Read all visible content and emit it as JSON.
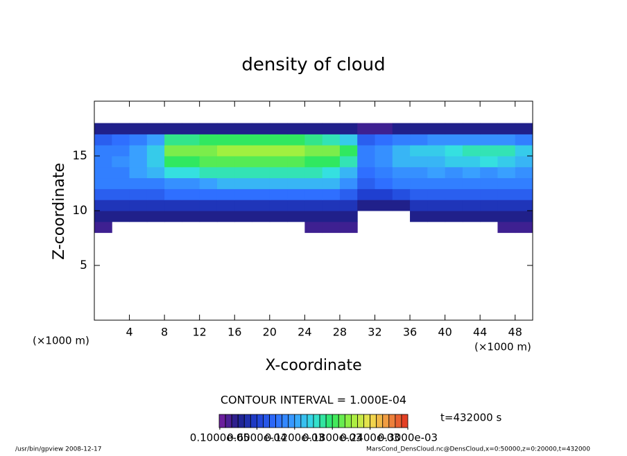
{
  "chart_data": {
    "type": "heatmap",
    "title": "density of cloud",
    "xlabel": "X-coordinate",
    "ylabel": "Z-coordinate",
    "xunit": "(×1000 m)",
    "yunit": "(×1000 m)",
    "contour_interval": "CONTOUR INTERVAL = 1.000E-04",
    "time_label": "t=432000 s",
    "footer_left": "/usr/bin/gpview   2008-12-17",
    "footer_right": "MarsCond_DensCloud.nc@DensCloud,x=0:50000,z=0:20000,t=432000",
    "xlim": [
      0,
      50
    ],
    "ylim": [
      0,
      20
    ],
    "xticks": [
      4,
      8,
      12,
      16,
      20,
      24,
      28,
      32,
      36,
      40,
      44,
      48
    ],
    "yticks": [
      5,
      10,
      15
    ],
    "x": [
      1,
      3,
      5,
      7,
      9,
      11,
      13,
      15,
      17,
      19,
      21,
      23,
      25,
      27,
      29,
      31,
      33,
      35,
      37,
      39,
      41,
      43,
      45,
      47,
      49
    ],
    "z": [
      8.5,
      9.5,
      10.5,
      11.5,
      12.5,
      13.5,
      14.5,
      15.5,
      16.5,
      17.5
    ],
    "values": [
      [
        2e-05,
        null,
        null,
        null,
        null,
        null,
        null,
        null,
        null,
        null,
        null,
        null,
        2e-05,
        2e-05,
        2e-05,
        null,
        null,
        null,
        null,
        null,
        null,
        null,
        null,
        2e-05,
        2e-05
      ],
      [
        3e-05,
        3e-05,
        3e-05,
        3e-05,
        3e-05,
        3e-05,
        3e-05,
        3e-05,
        3e-05,
        3e-05,
        3e-05,
        3e-05,
        3e-05,
        3e-05,
        3e-05,
        null,
        null,
        null,
        3e-05,
        3e-05,
        3e-05,
        3e-05,
        3e-05,
        3e-05,
        3e-05
      ],
      [
        5e-05,
        5e-05,
        5e-05,
        5e-05,
        5e-05,
        5e-05,
        5e-05,
        5e-05,
        5e-05,
        5e-05,
        5e-05,
        5e-05,
        5e-05,
        5e-05,
        5e-05,
        3e-05,
        3e-05,
        3e-05,
        5e-05,
        5e-05,
        5e-05,
        5e-05,
        5e-05,
        5e-05,
        5e-05
      ],
      [
        8e-05,
        8e-05,
        8e-05,
        8e-05,
        9e-05,
        9e-05,
        9e-05,
        9e-05,
        9e-05,
        9e-05,
        9e-05,
        9e-05,
        9e-05,
        9e-05,
        8e-05,
        6e-05,
        6e-05,
        7e-05,
        8e-05,
        8e-05,
        8e-05,
        8e-05,
        8e-05,
        8e-05,
        8e-05
      ],
      [
        0.0001,
        0.0001,
        0.0001,
        0.0001,
        0.00011,
        0.00011,
        0.00012,
        0.00013,
        0.00013,
        0.00013,
        0.00013,
        0.00013,
        0.00013,
        0.00013,
        0.00011,
        8e-05,
        9e-05,
        0.0001,
        0.0001,
        0.0001,
        0.0001,
        0.0001,
        0.0001,
        0.0001,
        0.0001
      ],
      [
        0.0001,
        0.0001,
        0.00012,
        0.00013,
        0.00015,
        0.00015,
        0.00016,
        0.00016,
        0.00016,
        0.00016,
        0.00016,
        0.00016,
        0.00016,
        0.00015,
        0.00013,
        9e-05,
        0.0001,
        0.00011,
        0.00011,
        0.00012,
        0.00011,
        0.00012,
        0.00011,
        0.00012,
        0.00011
      ],
      [
        0.0001,
        0.00011,
        0.00012,
        0.00014,
        0.00018,
        0.00018,
        0.00019,
        0.00019,
        0.00019,
        0.00019,
        0.00019,
        0.00019,
        0.00018,
        0.00018,
        0.00016,
        0.0001,
        0.00011,
        0.00013,
        0.00013,
        0.00013,
        0.00014,
        0.00014,
        0.00015,
        0.00014,
        0.00013
      ],
      [
        0.0001,
        0.0001,
        0.00012,
        0.00014,
        0.0002,
        0.0002,
        0.0002,
        0.00021,
        0.00021,
        0.00021,
        0.00021,
        0.00021,
        0.0002,
        0.0002,
        0.00018,
        0.0001,
        0.00011,
        0.00013,
        0.00014,
        0.00014,
        0.00015,
        0.00016,
        0.00016,
        0.00016,
        0.00014
      ],
      [
        8e-05,
        9e-05,
        0.0001,
        0.00012,
        0.00017,
        0.00017,
        0.00018,
        0.00018,
        0.00018,
        0.00018,
        0.00018,
        0.00018,
        0.00017,
        0.00016,
        0.00014,
        8e-05,
        9e-05,
        0.0001,
        0.0001,
        0.00011,
        0.00011,
        0.00011,
        0.00011,
        0.00011,
        0.0001
      ],
      [
        3e-05,
        3e-05,
        3e-05,
        3e-05,
        3e-05,
        3e-05,
        3e-05,
        3e-05,
        3e-05,
        3e-05,
        3e-05,
        3e-05,
        3e-05,
        3e-05,
        3e-05,
        2e-05,
        2e-05,
        3e-05,
        3e-05,
        3e-05,
        3e-05,
        3e-05,
        3e-05,
        3e-05,
        3e-05
      ]
    ],
    "clim": [
      0,
      0.0003
    ],
    "colors": [
      "#7a1fa0",
      "#20208a",
      "#1f3fd0",
      "#2f6fff",
      "#39a0ff",
      "#35e0e0",
      "#30e860",
      "#a0f040",
      "#f0e050",
      "#f09040",
      "#e03020"
    ],
    "colorbar_ticks": [
      {
        "value": 1e-06,
        "label": "0.1000e-05"
      },
      {
        "value": 6e-05,
        "label": "0.6000e-04"
      },
      {
        "value": 0.00012,
        "label": "0.1200e-03"
      },
      {
        "value": 0.00018,
        "label": "0.1800e-03"
      },
      {
        "value": 0.00024,
        "label": "0.2400e-03"
      },
      {
        "value": 0.0003,
        "label": "0.3000e-03"
      }
    ]
  }
}
